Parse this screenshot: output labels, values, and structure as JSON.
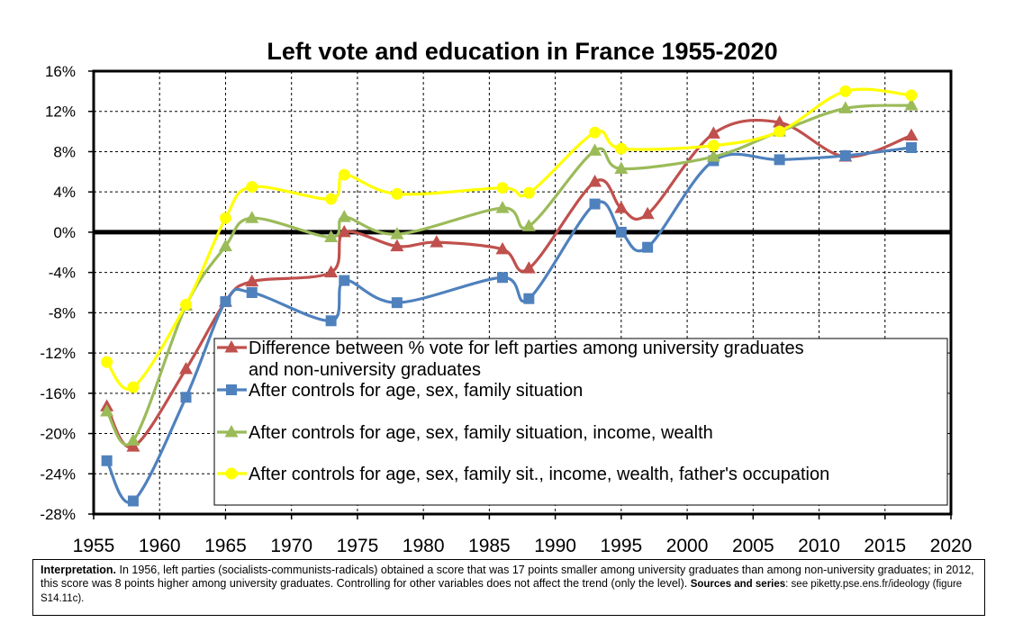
{
  "chart_data": {
    "type": "line",
    "title": "Left vote and education in France 1955-2020",
    "xlabel": "",
    "ylabel": "",
    "xlim": [
      1955,
      2020
    ],
    "ylim": [
      -28,
      16
    ],
    "x_ticks": [
      "1955",
      "1960",
      "1965",
      "1970",
      "1975",
      "1980",
      "1985",
      "1990",
      "1995",
      "2000",
      "2005",
      "2010",
      "2015",
      "2020"
    ],
    "y_ticks": [
      "16%",
      "12%",
      "8%",
      "4%",
      "0%",
      "-4%",
      "-8%",
      "-12%",
      "-16%",
      "-20%",
      "-24%",
      "-28%"
    ],
    "grid": true,
    "legend_position": "bottom-right",
    "series": [
      {
        "name": "Difference between % vote for left parties among university graduates and non-university graduates",
        "name_lines": [
          "Difference between % vote for left parties among university graduates",
          "and non-university graduates"
        ],
        "color": "#c0504d",
        "marker": "triangle",
        "points": [
          [
            1956,
            -17.3
          ],
          [
            1958,
            -21.3
          ],
          [
            1962,
            -13.6
          ],
          [
            1965,
            -6.9
          ],
          [
            1967,
            -4.9
          ],
          [
            1973,
            -4
          ],
          [
            1974,
            0
          ],
          [
            1978,
            -1.4
          ],
          [
            1981,
            -1
          ],
          [
            1986,
            -1.7
          ],
          [
            1988,
            -3.6
          ],
          [
            1993,
            5
          ],
          [
            1995,
            2.4
          ],
          [
            1997,
            1.8
          ],
          [
            2002,
            9.8
          ],
          [
            2007,
            10.9
          ],
          [
            2012,
            7.5
          ],
          [
            2017,
            9.6
          ]
        ]
      },
      {
        "name": "After controls for age, sex, family situation",
        "name_lines": [
          "After controls for age, sex, family situation"
        ],
        "color": "#4f81bd",
        "marker": "square",
        "points": [
          [
            1956,
            -22.7
          ],
          [
            1958,
            -26.7
          ],
          [
            1962,
            -16.4
          ],
          [
            1965,
            -6.9
          ],
          [
            1967,
            -6
          ],
          [
            1973,
            -8.8
          ],
          [
            1974,
            -4.8
          ],
          [
            1978,
            -7
          ],
          [
            1986,
            -4.5
          ],
          [
            1988,
            -6.6
          ],
          [
            1993,
            2.8
          ],
          [
            1995,
            0
          ],
          [
            1997,
            -1.5
          ],
          [
            2002,
            7.1
          ],
          [
            2007,
            7.2
          ],
          [
            2012,
            7.6
          ],
          [
            2017,
            8.4
          ]
        ]
      },
      {
        "name": "After controls for age, sex, family situation, income, wealth",
        "name_lines": [
          "After controls for age, sex, family situation, income, wealth"
        ],
        "color": "#9bbb59",
        "marker": "triangle",
        "points": [
          [
            1956,
            -17.8
          ],
          [
            1958,
            -20.7
          ],
          [
            1962,
            -7.3
          ],
          [
            1965,
            -1.4
          ],
          [
            1967,
            1.4
          ],
          [
            1973,
            -0.5
          ],
          [
            1974,
            1.5
          ],
          [
            1978,
            -0.2
          ],
          [
            1986,
            2.4
          ],
          [
            1988,
            0.6
          ],
          [
            1993,
            8.1
          ],
          [
            1995,
            6.3
          ],
          [
            2002,
            7.5
          ],
          [
            2007,
            10
          ],
          [
            2012,
            12.3
          ],
          [
            2017,
            12.6
          ]
        ]
      },
      {
        "name": "After controls for age, sex, family sit., income, wealth, father's occupation",
        "name_lines": [
          "After controls for age, sex, family sit., income, wealth, father's occupation"
        ],
        "color": "#ffff00",
        "marker": "circle",
        "points": [
          [
            1956,
            -12.9
          ],
          [
            1958,
            -15.4
          ],
          [
            1962,
            -7.2
          ],
          [
            1965,
            1.4
          ],
          [
            1967,
            4.5
          ],
          [
            1973,
            3.3
          ],
          [
            1974,
            5.7
          ],
          [
            1978,
            3.8
          ],
          [
            1986,
            4.4
          ],
          [
            1988,
            3.9
          ],
          [
            1993,
            9.9
          ],
          [
            1995,
            8.3
          ],
          [
            2002,
            8.6
          ],
          [
            2007,
            10
          ],
          [
            2012,
            14
          ],
          [
            2017,
            13.6
          ]
        ]
      }
    ]
  },
  "caption": {
    "interp_label": "Interpretation.",
    "interp_text": " In 1956, left parties (socialists-communists-radicals) obtained a score that was 17 points smaller among university graduates than among non-university graduates; in 2012, this score was 8 points higher among university graduates. Controlling for other variables does not affect the trend (only the level). ",
    "sources_label": "Sources and series",
    "sources_text": ": see piketty.pse.ens.fr/ideology (figure S14.11c)."
  }
}
